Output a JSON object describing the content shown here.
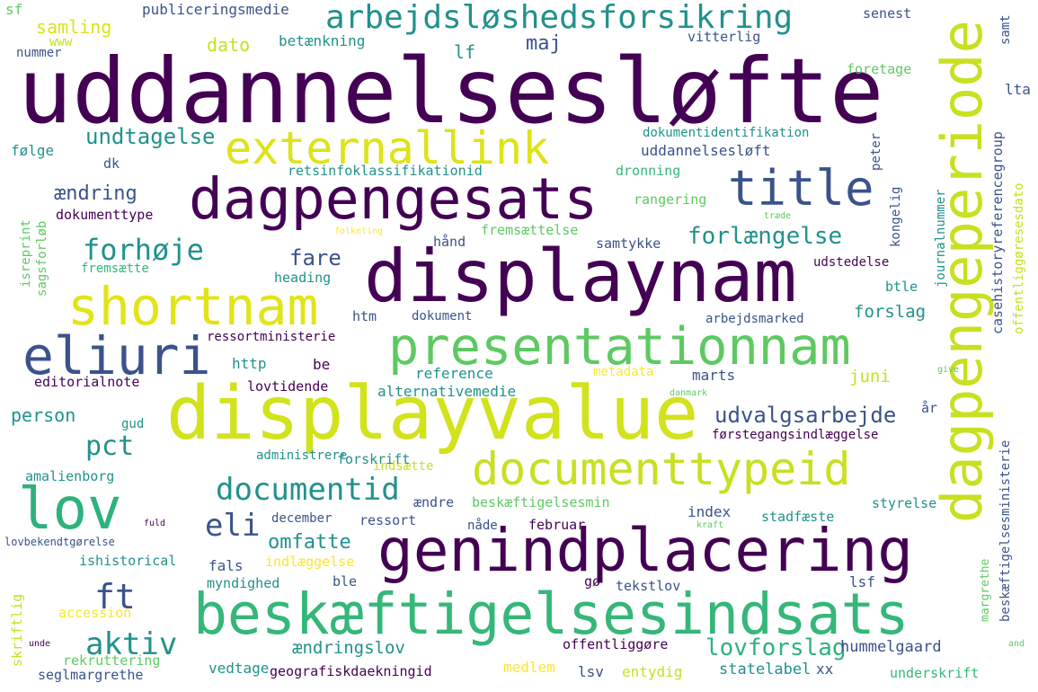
{
  "palette": {
    "dark_purple": "#440154",
    "indigo": "#3b528b",
    "teal": "#21918c",
    "green": "#5ec962",
    "yellow_green": "#bddf26",
    "yellow": "#fde725"
  },
  "words": {
    "uddannelsesloefte": "uddannelsesløfte",
    "displaynam": "displaynam",
    "displayvalue": "displayvalue",
    "genindplacering": "genindplacering",
    "dagpengesats": "dagpengesats",
    "beskaeftigelsesindsats": "beskæftigelsesindsats",
    "dagpengeperiode": "dagpengeperiode",
    "presentationnam": "presentationnam",
    "documenttypeid": "documenttypeid",
    "shortnam": "shortnam",
    "externallink": "externallink",
    "title": "title",
    "eliuri": "eliuri",
    "lov": "lov",
    "arbejdsloeshedsforsikring": "arbejdsløshedsforsikring",
    "documentid": "documentid",
    "forhoeje": "forhøje",
    "forlaengelse": "forlængelse",
    "udvalgsarbejde": "udvalgsarbejde",
    "aktiv": "aktiv",
    "lovforslag": "lovforslag",
    "eli": "eli",
    "ft": "ft",
    "pct": "pct",
    "undtagelse": "undtagelse",
    "aendring": "ændring",
    "fare": "fare",
    "omfatte": "omfatte",
    "maj": "maj",
    "dato": "dato",
    "samling": "samling",
    "www": "www",
    "nummer": "nummer",
    "sf": "sf",
    "publiceringsmedie": "publiceringsmedie",
    "betaenkning": "betænkning",
    "lf": "lf",
    "senest": "senest",
    "samt": "samt",
    "vitterlig": "vitterlig",
    "foretage": "foretage",
    "lta": "lta",
    "casehistoryreferencegroup": "casehistoryreferencegroup",
    "dokumentidentifikation": "dokumentidentifikation",
    "uddannelsesloeft": "uddannelsesløft",
    "foelge": "følge",
    "dk": "dk",
    "retsinfoklassifikationid": "retsinfoklassifikationid",
    "dronning": "dronning",
    "peter": "peter",
    "journalnummer": "journalnummer",
    "offentliggoeresesdato": "offentliggøresesdato",
    "kongelig": "kongelig",
    "rangering": "rangering",
    "traede": "træde",
    "dokumenttype": "dokumenttype",
    "folketing": "folketing",
    "haand": "hånd",
    "fremsaettelse": "fremsættelse",
    "samtykke": "samtykke",
    "isreprint": "isreprint",
    "sagsforloeb": "sagsforløb",
    "fremsaette": "fremsætte",
    "heading": "heading",
    "udstedelse": "udstedelse",
    "btle": "btle",
    "htm": "htm",
    "dokument": "dokument",
    "forslag": "forslag",
    "arbejdsmarked": "arbejdsmarked",
    "ressortministerie": "ressortministerie",
    "http": "http",
    "be": "be",
    "reference": "reference",
    "metadata": "metadata",
    "marts": "marts",
    "juni": "juni",
    "give": "give",
    "editorialnote": "editorialnote",
    "lovtidende": "lovtidende",
    "alternativemedie": "alternativemedie",
    "danmark": "danmark",
    "person": "person",
    "gud": "gud",
    "aar": "år",
    "beskaeftigelsesministerie": "beskæftigelsesministerie",
    "foerstegangsindlaeggelse": "førstegangsindlæggelse",
    "administrere": "administrere",
    "amalienborg": "amalienborg",
    "indsaette": "indsætte",
    "forskrift": "forskrift",
    "aendre": "ændre",
    "beskaeftigelsesmin": "beskæftigelsesmin",
    "index": "index",
    "styrelse": "styrelse",
    "december": "december",
    "ressort": "ressort",
    "naade": "nåde",
    "februar": "februar",
    "stadfaeste": "stadfæste",
    "kraft": "kraft",
    "fuld": "fuld",
    "lovbekendtgoerelse": "lovbekendtgørelse",
    "fals": "fals",
    "indlaeggelse": "indlæggelse",
    "ishistorical": "ishistorical",
    "myndighed": "myndighed",
    "ble": "ble",
    "goe": "gø",
    "tekstlov": "tekstlov",
    "lsf": "lsf",
    "skriftlig": "skriftlig",
    "accession": "accession",
    "margrethe": "margrethe",
    "unde": "unde",
    "aendringslov": "ændringslov",
    "offentliggoere": "offentliggøre",
    "hummelgaard": "hummelgaard",
    "and": "and",
    "rekruttering": "rekruttering",
    "seglmargrethe": "seglmargrethe",
    "vedtage": "vedtage",
    "geografiskdaekningid": "geografiskdaekningid",
    "medlem": "medlem",
    "lsv": "lsv",
    "entydig": "entydig",
    "statelabel": "statelabel",
    "xx": "xx",
    "underskrift": "underskrift"
  }
}
